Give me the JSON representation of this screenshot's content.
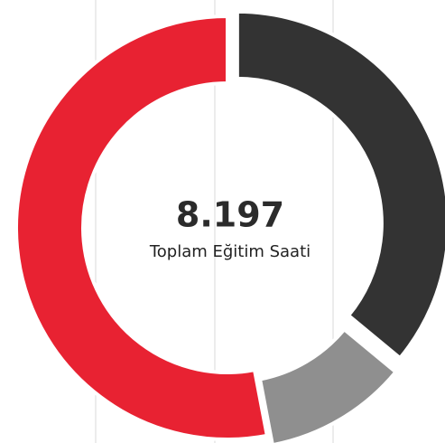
{
  "chart_data": {
    "type": "donut",
    "title": "8.197",
    "subtitle": "Toplam Eğitim Saati",
    "values": [
      36,
      11,
      53
    ],
    "colors": [
      "#333333",
      "#8f8f8f",
      "#e82232"
    ],
    "exploded": [
      true,
      true,
      false
    ]
  }
}
